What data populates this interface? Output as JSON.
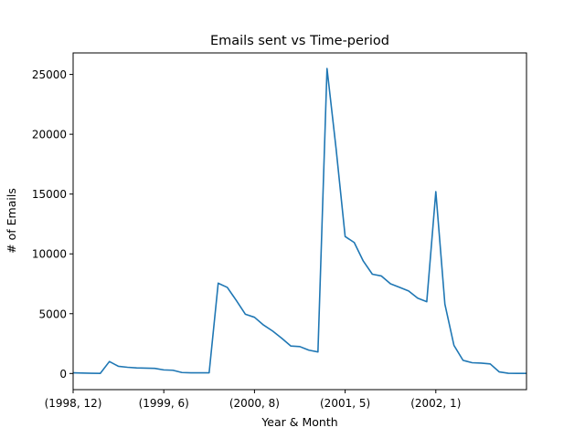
{
  "chart_data": {
    "type": "line",
    "title": "Emails sent vs Time-period",
    "xlabel": "Year & Month",
    "ylabel": "# of Emails",
    "ylim": [
      -1350,
      26800
    ],
    "xlim": [
      0,
      50
    ],
    "x_ticks": [
      {
        "x": 0,
        "label": "(1998, 12)"
      },
      {
        "x": 10,
        "label": "(1999, 6)"
      },
      {
        "x": 20,
        "label": "(2000, 8)"
      },
      {
        "x": 30,
        "label": "(2001, 5)"
      },
      {
        "x": 40,
        "label": "(2002, 1)"
      }
    ],
    "y_ticks": [
      0,
      5000,
      10000,
      15000,
      20000,
      25000
    ],
    "grid": false,
    "series": [
      {
        "color": "#1f77b4",
        "values": [
          60,
          40,
          20,
          10,
          1000,
          600,
          520,
          470,
          450,
          430,
          300,
          270,
          80,
          60,
          60,
          60,
          7550,
          7200,
          6100,
          4950,
          4700,
          4050,
          3550,
          2950,
          2300,
          2250,
          1950,
          1800,
          25500,
          18800,
          11450,
          10950,
          9400,
          8300,
          8150,
          7500,
          7200,
          6900,
          6300,
          6000,
          15200,
          5800,
          2350,
          1100,
          900,
          870,
          800,
          130,
          20,
          10,
          10
        ]
      }
    ]
  }
}
